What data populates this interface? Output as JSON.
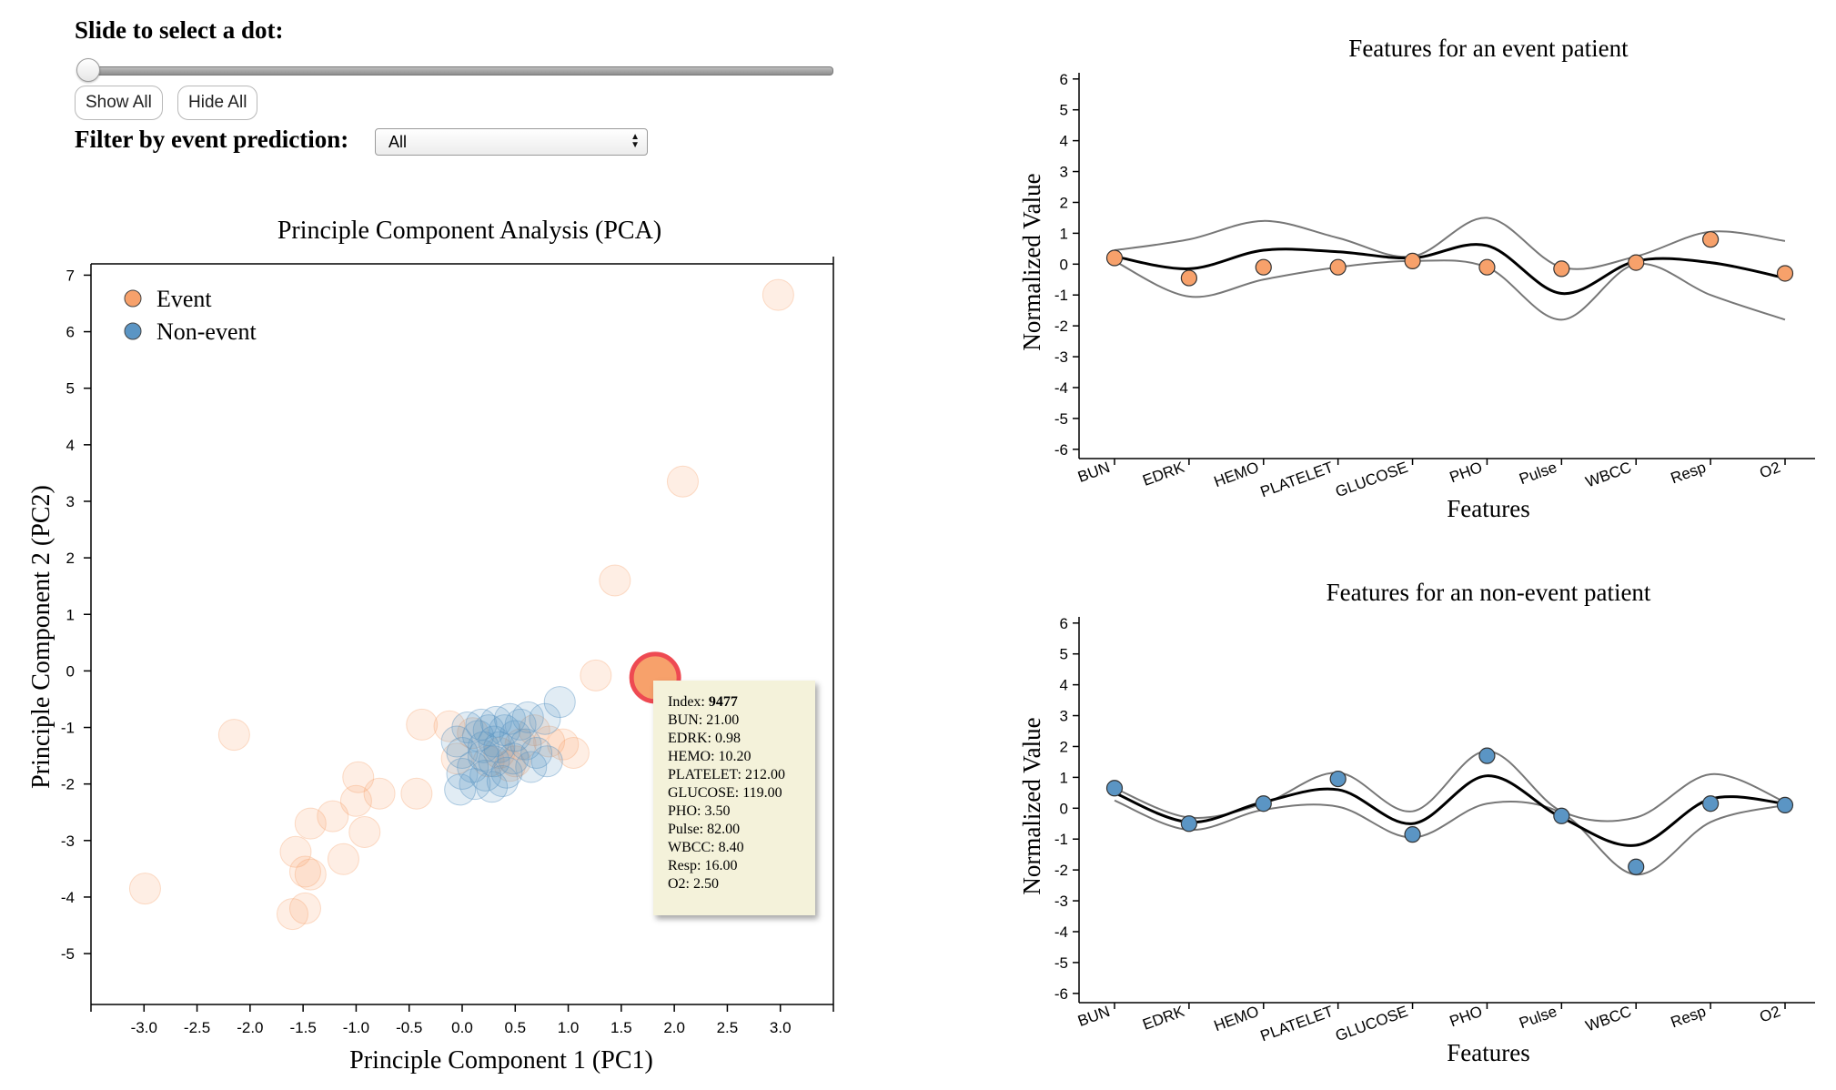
{
  "controls": {
    "slider_label": "Slide to select a dot:",
    "slider_value": 0,
    "show_all_label": "Show All",
    "hide_all_label": "Hide All",
    "filter_label": "Filter by event prediction:",
    "filter_value": "All"
  },
  "colors": {
    "event": "#f7a16b",
    "nonevent": "#5b95c4",
    "highlight_stroke": "#ee4a52",
    "tooltip_bg": "#f4f2da"
  },
  "pca": {
    "title": "Principle Component Analysis (PCA)",
    "xlabel": "Principle Component 1 (PC1)",
    "ylabel": "Principle Component 2 (PC2)",
    "legend": [
      "Event",
      "Non-event"
    ],
    "chart_data": {
      "type": "scatter",
      "xlim": [
        -3.5,
        3.5
      ],
      "ylim": [
        -5.9,
        7.2
      ],
      "xticks": [
        -3.0,
        -2.5,
        -2.0,
        -1.5,
        -1.0,
        -0.5,
        0.0,
        0.5,
        1.0,
        1.5,
        2.0,
        2.5,
        3.0
      ],
      "xtick_labels": [
        "-3.0",
        "-2.5",
        "-2.0",
        "-1.5",
        "-1.0",
        "-0.5",
        "0.0",
        "0.5",
        "1.0",
        "1.5",
        "2.0",
        "2.5",
        "3.0"
      ],
      "yticks": [
        -5,
        -4,
        -3,
        -2,
        -1,
        0,
        1,
        2,
        3,
        4,
        5,
        6,
        7
      ],
      "ytick_labels": [
        "-5",
        "-4",
        "-3",
        "-2",
        "-1",
        "0",
        "1",
        "2",
        "3",
        "4",
        "5",
        "6",
        "7"
      ],
      "legend_position": "top-left",
      "event": [
        [
          2.98,
          6.65
        ],
        [
          2.08,
          3.35
        ],
        [
          1.44,
          1.6
        ],
        [
          1.26,
          -0.08
        ],
        [
          -2.15,
          -1.13
        ],
        [
          -2.99,
          -3.85
        ],
        [
          -0.98,
          -1.88
        ],
        [
          -1.0,
          -2.3
        ],
        [
          -0.78,
          -2.17
        ],
        [
          -0.92,
          -2.85
        ],
        [
          -1.22,
          -2.57
        ],
        [
          -1.43,
          -2.7
        ],
        [
          -1.57,
          -3.2
        ],
        [
          -1.48,
          -3.55
        ],
        [
          -1.43,
          -3.6
        ],
        [
          -1.12,
          -3.33
        ],
        [
          -1.6,
          -4.3
        ],
        [
          -1.48,
          -4.2
        ],
        [
          -0.43,
          -2.17
        ],
        [
          -0.38,
          -0.95
        ],
        [
          -0.12,
          -0.98
        ],
        [
          0.1,
          -1.1
        ],
        [
          0.35,
          -1.45
        ],
        [
          0.5,
          -1.6
        ],
        [
          0.45,
          -1.68
        ],
        [
          0.55,
          -1.3
        ],
        [
          0.82,
          -1.25
        ],
        [
          0.95,
          -1.3
        ],
        [
          1.05,
          -1.45
        ],
        [
          0.68,
          -1.05
        ],
        [
          0.25,
          -1.6
        ],
        [
          -0.05,
          -1.55
        ]
      ],
      "nonevent": [
        [
          0.92,
          -0.55
        ],
        [
          0.78,
          -0.85
        ],
        [
          0.62,
          -0.82
        ],
        [
          0.45,
          -0.85
        ],
        [
          0.32,
          -0.9
        ],
        [
          0.18,
          -0.95
        ],
        [
          0.05,
          -1.0
        ],
        [
          -0.05,
          -1.25
        ],
        [
          0.0,
          -1.45
        ],
        [
          0.1,
          -1.7
        ],
        [
          0.2,
          -1.35
        ],
        [
          0.3,
          -1.25
        ],
        [
          0.4,
          -1.05
        ],
        [
          0.5,
          -1.15
        ],
        [
          0.6,
          -1.3
        ],
        [
          0.7,
          -1.45
        ],
        [
          0.8,
          -1.6
        ],
        [
          0.3,
          -1.6
        ],
        [
          0.22,
          -1.85
        ],
        [
          0.0,
          -1.82
        ],
        [
          -0.02,
          -2.1
        ],
        [
          0.12,
          -2.0
        ],
        [
          0.28,
          -2.05
        ],
        [
          0.38,
          -1.95
        ],
        [
          0.48,
          -1.55
        ],
        [
          0.15,
          -1.15
        ],
        [
          0.25,
          -1.05
        ],
        [
          0.55,
          -0.95
        ],
        [
          0.65,
          -1.7
        ],
        [
          0.42,
          -1.8
        ],
        [
          0.35,
          -1.35
        ],
        [
          0.2,
          -1.5
        ]
      ],
      "highlighted": {
        "pc1": 1.82,
        "pc2": -0.12
      }
    },
    "tooltip": {
      "index_label": "Index:",
      "index_value": "9477",
      "lines": [
        "BUN: 21.00",
        "EDRK: 0.98",
        "HEMO: 10.20",
        "PLATELET: 212.00",
        "GLUCOSE: 119.00",
        "PHO: 3.50",
        "Pulse: 82.00",
        "WBCC: 8.40",
        "Resp: 16.00",
        "O2: 2.50"
      ]
    }
  },
  "event_chart": {
    "title": "Features for an event patient",
    "xlabel": "Features",
    "ylabel": "Normalized Value",
    "chart_data": {
      "type": "line",
      "categories": [
        "BUN",
        "EDRK",
        "HEMO",
        "PLATELET",
        "GLUCOSE",
        "PHO",
        "Pulse",
        "WBCC",
        "Resp",
        "O2"
      ],
      "ylim": [
        -6.3,
        6.2
      ],
      "yticks": [
        -6,
        -5,
        -4,
        -3,
        -2,
        -1,
        0,
        1,
        2,
        3,
        4,
        5,
        6
      ],
      "ytick_labels": [
        "-6",
        "-5",
        "-4",
        "-3",
        "-2",
        "-1",
        "0",
        "1",
        "2",
        "3",
        "4",
        "5",
        "6"
      ],
      "series": [
        {
          "role": "patient",
          "values": [
            0.2,
            -0.45,
            -0.1,
            -0.1,
            0.1,
            -0.1,
            -0.15,
            0.05,
            0.8,
            -0.3
          ]
        },
        {
          "role": "mean",
          "values": [
            0.25,
            -0.15,
            0.45,
            0.4,
            0.2,
            0.6,
            -0.95,
            0.1,
            0.05,
            -0.45
          ]
        },
        {
          "role": "upper",
          "values": [
            0.45,
            0.8,
            1.4,
            0.85,
            0.25,
            1.5,
            -0.1,
            0.25,
            1.05,
            0.75
          ]
        },
        {
          "role": "lower",
          "values": [
            0.1,
            -1.05,
            -0.5,
            -0.1,
            0.1,
            -0.1,
            -1.8,
            0.0,
            -1.0,
            -1.8
          ]
        }
      ]
    }
  },
  "nonevent_chart": {
    "title": "Features for an non-event patient",
    "xlabel": "Features",
    "ylabel": "Normalized Value",
    "chart_data": {
      "type": "line",
      "categories": [
        "BUN",
        "EDRK",
        "HEMO",
        "PLATELET",
        "GLUCOSE",
        "PHO",
        "Pulse",
        "WBCC",
        "Resp",
        "O2"
      ],
      "ylim": [
        -6.3,
        6.2
      ],
      "yticks": [
        -6,
        -5,
        -4,
        -3,
        -2,
        -1,
        0,
        1,
        2,
        3,
        4,
        5,
        6
      ],
      "ytick_labels": [
        "-6",
        "-5",
        "-4",
        "-3",
        "-2",
        "-1",
        "0",
        "1",
        "2",
        "3",
        "4",
        "5",
        "6"
      ],
      "series": [
        {
          "role": "patient",
          "values": [
            0.65,
            -0.5,
            0.15,
            0.95,
            -0.85,
            1.7,
            -0.25,
            -1.9,
            0.15,
            0.1
          ]
        },
        {
          "role": "mean",
          "values": [
            0.5,
            -0.45,
            0.2,
            0.6,
            -0.5,
            1.05,
            -0.3,
            -1.2,
            0.3,
            0.15
          ]
        },
        {
          "role": "upper",
          "values": [
            0.65,
            -0.3,
            0.15,
            1.15,
            -0.1,
            1.85,
            -0.1,
            -0.3,
            1.1,
            0.2
          ]
        },
        {
          "role": "lower",
          "values": [
            0.25,
            -0.7,
            -0.05,
            0.05,
            -0.95,
            0.15,
            -0.15,
            -2.15,
            -0.45,
            0.1
          ]
        }
      ]
    }
  }
}
